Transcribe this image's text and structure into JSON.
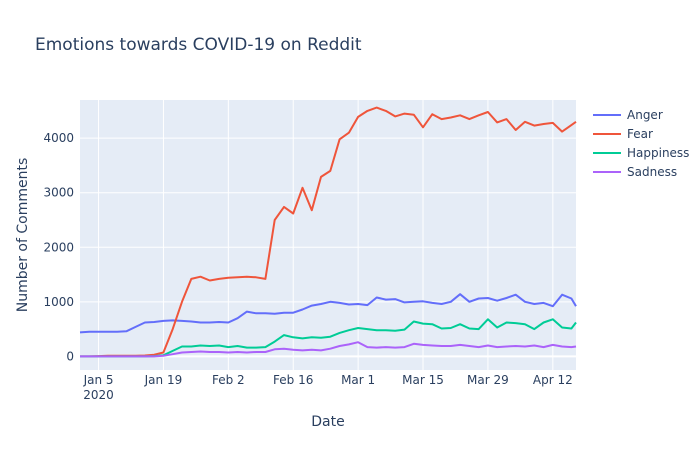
{
  "chart_data": {
    "type": "line",
    "title": "Emotions towards COVID-19 on Reddit",
    "xlabel": "Date",
    "ylabel": "Number of Comments",
    "x_range": [
      "2020-01-01",
      "2020-04-17"
    ],
    "ylim": [
      -250,
      4700
    ],
    "grid": true,
    "legend_position": "top-right",
    "x_ticks": [
      {
        "date": "2020-01-05",
        "label": "Jan 5",
        "sublabel": "2020"
      },
      {
        "date": "2020-01-19",
        "label": "Jan 19",
        "sublabel": ""
      },
      {
        "date": "2020-02-02",
        "label": "Feb 2",
        "sublabel": ""
      },
      {
        "date": "2020-02-16",
        "label": "Feb 16",
        "sublabel": ""
      },
      {
        "date": "2020-03-01",
        "label": "Mar 1",
        "sublabel": ""
      },
      {
        "date": "2020-03-15",
        "label": "Mar 15",
        "sublabel": ""
      },
      {
        "date": "2020-03-29",
        "label": "Mar 29",
        "sublabel": ""
      },
      {
        "date": "2020-04-12",
        "label": "Apr 12",
        "sublabel": ""
      }
    ],
    "y_ticks": [
      {
        "value": 0,
        "label": "0"
      },
      {
        "value": 1000,
        "label": "1000"
      },
      {
        "value": 2000,
        "label": "2000"
      },
      {
        "value": 3000,
        "label": "3000"
      },
      {
        "value": 4000,
        "label": "4000"
      }
    ],
    "series": [
      {
        "name": "Anger",
        "color": "#636efa",
        "points": [
          [
            "2020-01-01",
            440
          ],
          [
            "2020-01-03",
            450
          ],
          [
            "2020-01-05",
            450
          ],
          [
            "2020-01-07",
            450
          ],
          [
            "2020-01-09",
            450
          ],
          [
            "2020-01-11",
            460
          ],
          [
            "2020-01-13",
            540
          ],
          [
            "2020-01-15",
            620
          ],
          [
            "2020-01-17",
            630
          ],
          [
            "2020-01-19",
            650
          ],
          [
            "2020-01-21",
            660
          ],
          [
            "2020-01-23",
            650
          ],
          [
            "2020-01-25",
            640
          ],
          [
            "2020-01-27",
            620
          ],
          [
            "2020-01-29",
            620
          ],
          [
            "2020-01-31",
            630
          ],
          [
            "2020-02-02",
            620
          ],
          [
            "2020-02-04",
            700
          ],
          [
            "2020-02-06",
            820
          ],
          [
            "2020-02-08",
            790
          ],
          [
            "2020-02-10",
            790
          ],
          [
            "2020-02-12",
            780
          ],
          [
            "2020-02-14",
            800
          ],
          [
            "2020-02-16",
            800
          ],
          [
            "2020-02-18",
            860
          ],
          [
            "2020-02-20",
            930
          ],
          [
            "2020-02-22",
            960
          ],
          [
            "2020-02-24",
            1000
          ],
          [
            "2020-02-26",
            980
          ],
          [
            "2020-02-28",
            950
          ],
          [
            "2020-03-01",
            960
          ],
          [
            "2020-03-03",
            940
          ],
          [
            "2020-03-05",
            1080
          ],
          [
            "2020-03-07",
            1040
          ],
          [
            "2020-03-09",
            1050
          ],
          [
            "2020-03-11",
            990
          ],
          [
            "2020-03-13",
            1000
          ],
          [
            "2020-03-15",
            1010
          ],
          [
            "2020-03-17",
            980
          ],
          [
            "2020-03-19",
            960
          ],
          [
            "2020-03-21",
            1000
          ],
          [
            "2020-03-23",
            1140
          ],
          [
            "2020-03-25",
            1000
          ],
          [
            "2020-03-27",
            1060
          ],
          [
            "2020-03-29",
            1070
          ],
          [
            "2020-03-31",
            1020
          ],
          [
            "2020-04-02",
            1070
          ],
          [
            "2020-04-04",
            1130
          ],
          [
            "2020-04-06",
            1000
          ],
          [
            "2020-04-08",
            960
          ],
          [
            "2020-04-10",
            980
          ],
          [
            "2020-04-12",
            920
          ],
          [
            "2020-04-14",
            1130
          ],
          [
            "2020-04-16",
            1060
          ],
          [
            "2020-04-17",
            920
          ]
        ]
      },
      {
        "name": "Fear",
        "color": "#ef553b",
        "points": [
          [
            "2020-01-01",
            0
          ],
          [
            "2020-01-03",
            0
          ],
          [
            "2020-01-05",
            5
          ],
          [
            "2020-01-07",
            10
          ],
          [
            "2020-01-09",
            10
          ],
          [
            "2020-01-11",
            10
          ],
          [
            "2020-01-13",
            10
          ],
          [
            "2020-01-15",
            15
          ],
          [
            "2020-01-17",
            30
          ],
          [
            "2020-01-19",
            70
          ],
          [
            "2020-01-21",
            500
          ],
          [
            "2020-01-23",
            1000
          ],
          [
            "2020-01-25",
            1420
          ],
          [
            "2020-01-27",
            1460
          ],
          [
            "2020-01-29",
            1390
          ],
          [
            "2020-01-31",
            1420
          ],
          [
            "2020-02-02",
            1440
          ],
          [
            "2020-02-04",
            1450
          ],
          [
            "2020-02-06",
            1460
          ],
          [
            "2020-02-08",
            1450
          ],
          [
            "2020-02-10",
            1420
          ],
          [
            "2020-02-12",
            2500
          ],
          [
            "2020-02-14",
            2740
          ],
          [
            "2020-02-16",
            2620
          ],
          [
            "2020-02-18",
            3090
          ],
          [
            "2020-02-20",
            2680
          ],
          [
            "2020-02-22",
            3290
          ],
          [
            "2020-02-24",
            3400
          ],
          [
            "2020-02-26",
            3980
          ],
          [
            "2020-02-28",
            4100
          ],
          [
            "2020-03-01",
            4390
          ],
          [
            "2020-03-03",
            4500
          ],
          [
            "2020-03-05",
            4560
          ],
          [
            "2020-03-07",
            4500
          ],
          [
            "2020-03-09",
            4400
          ],
          [
            "2020-03-11",
            4450
          ],
          [
            "2020-03-13",
            4430
          ],
          [
            "2020-03-15",
            4200
          ],
          [
            "2020-03-17",
            4440
          ],
          [
            "2020-03-19",
            4350
          ],
          [
            "2020-03-21",
            4380
          ],
          [
            "2020-03-23",
            4420
          ],
          [
            "2020-03-25",
            4350
          ],
          [
            "2020-03-27",
            4420
          ],
          [
            "2020-03-29",
            4480
          ],
          [
            "2020-03-31",
            4290
          ],
          [
            "2020-04-02",
            4350
          ],
          [
            "2020-04-04",
            4150
          ],
          [
            "2020-04-06",
            4300
          ],
          [
            "2020-04-08",
            4230
          ],
          [
            "2020-04-10",
            4260
          ],
          [
            "2020-04-12",
            4280
          ],
          [
            "2020-04-14",
            4120
          ],
          [
            "2020-04-16",
            4240
          ],
          [
            "2020-04-17",
            4300
          ]
        ]
      },
      {
        "name": "Happiness",
        "color": "#00cc96",
        "points": [
          [
            "2020-01-01",
            0
          ],
          [
            "2020-01-03",
            0
          ],
          [
            "2020-01-05",
            0
          ],
          [
            "2020-01-07",
            0
          ],
          [
            "2020-01-09",
            0
          ],
          [
            "2020-01-11",
            0
          ],
          [
            "2020-01-13",
            0
          ],
          [
            "2020-01-15",
            0
          ],
          [
            "2020-01-17",
            5
          ],
          [
            "2020-01-19",
            20
          ],
          [
            "2020-01-21",
            100
          ],
          [
            "2020-01-23",
            180
          ],
          [
            "2020-01-25",
            180
          ],
          [
            "2020-01-27",
            200
          ],
          [
            "2020-01-29",
            190
          ],
          [
            "2020-01-31",
            200
          ],
          [
            "2020-02-02",
            170
          ],
          [
            "2020-02-04",
            190
          ],
          [
            "2020-02-06",
            160
          ],
          [
            "2020-02-08",
            160
          ],
          [
            "2020-02-10",
            170
          ],
          [
            "2020-02-12",
            270
          ],
          [
            "2020-02-14",
            390
          ],
          [
            "2020-02-16",
            350
          ],
          [
            "2020-02-18",
            330
          ],
          [
            "2020-02-20",
            350
          ],
          [
            "2020-02-22",
            340
          ],
          [
            "2020-02-24",
            360
          ],
          [
            "2020-02-26",
            430
          ],
          [
            "2020-02-28",
            480
          ],
          [
            "2020-03-01",
            520
          ],
          [
            "2020-03-03",
            500
          ],
          [
            "2020-03-05",
            480
          ],
          [
            "2020-03-07",
            480
          ],
          [
            "2020-03-09",
            470
          ],
          [
            "2020-03-11",
            490
          ],
          [
            "2020-03-13",
            640
          ],
          [
            "2020-03-15",
            600
          ],
          [
            "2020-03-17",
            590
          ],
          [
            "2020-03-19",
            510
          ],
          [
            "2020-03-21",
            520
          ],
          [
            "2020-03-23",
            590
          ],
          [
            "2020-03-25",
            510
          ],
          [
            "2020-03-27",
            500
          ],
          [
            "2020-03-29",
            680
          ],
          [
            "2020-03-31",
            530
          ],
          [
            "2020-04-02",
            620
          ],
          [
            "2020-04-04",
            610
          ],
          [
            "2020-04-06",
            590
          ],
          [
            "2020-04-08",
            500
          ],
          [
            "2020-04-10",
            620
          ],
          [
            "2020-04-12",
            680
          ],
          [
            "2020-04-14",
            530
          ],
          [
            "2020-04-16",
            510
          ],
          [
            "2020-04-17",
            620
          ]
        ]
      },
      {
        "name": "Sadness",
        "color": "#ab63fa",
        "points": [
          [
            "2020-01-01",
            0
          ],
          [
            "2020-01-03",
            0
          ],
          [
            "2020-01-05",
            0
          ],
          [
            "2020-01-07",
            0
          ],
          [
            "2020-01-09",
            0
          ],
          [
            "2020-01-11",
            0
          ],
          [
            "2020-01-13",
            0
          ],
          [
            "2020-01-15",
            0
          ],
          [
            "2020-01-17",
            0
          ],
          [
            "2020-01-19",
            10
          ],
          [
            "2020-01-21",
            40
          ],
          [
            "2020-01-23",
            70
          ],
          [
            "2020-01-25",
            80
          ],
          [
            "2020-01-27",
            90
          ],
          [
            "2020-01-29",
            80
          ],
          [
            "2020-01-31",
            80
          ],
          [
            "2020-02-02",
            70
          ],
          [
            "2020-02-04",
            80
          ],
          [
            "2020-02-06",
            70
          ],
          [
            "2020-02-08",
            80
          ],
          [
            "2020-02-10",
            80
          ],
          [
            "2020-02-12",
            130
          ],
          [
            "2020-02-14",
            140
          ],
          [
            "2020-02-16",
            120
          ],
          [
            "2020-02-18",
            110
          ],
          [
            "2020-02-20",
            120
          ],
          [
            "2020-02-22",
            110
          ],
          [
            "2020-02-24",
            140
          ],
          [
            "2020-02-26",
            190
          ],
          [
            "2020-02-28",
            220
          ],
          [
            "2020-03-01",
            260
          ],
          [
            "2020-03-03",
            170
          ],
          [
            "2020-03-05",
            160
          ],
          [
            "2020-03-07",
            170
          ],
          [
            "2020-03-09",
            160
          ],
          [
            "2020-03-11",
            170
          ],
          [
            "2020-03-13",
            230
          ],
          [
            "2020-03-15",
            210
          ],
          [
            "2020-03-17",
            200
          ],
          [
            "2020-03-19",
            190
          ],
          [
            "2020-03-21",
            190
          ],
          [
            "2020-03-23",
            210
          ],
          [
            "2020-03-25",
            190
          ],
          [
            "2020-03-27",
            170
          ],
          [
            "2020-03-29",
            200
          ],
          [
            "2020-03-31",
            170
          ],
          [
            "2020-04-02",
            180
          ],
          [
            "2020-04-04",
            190
          ],
          [
            "2020-04-06",
            180
          ],
          [
            "2020-04-08",
            200
          ],
          [
            "2020-04-10",
            170
          ],
          [
            "2020-04-12",
            210
          ],
          [
            "2020-04-14",
            180
          ],
          [
            "2020-04-16",
            170
          ],
          [
            "2020-04-17",
            180
          ]
        ]
      }
    ]
  }
}
